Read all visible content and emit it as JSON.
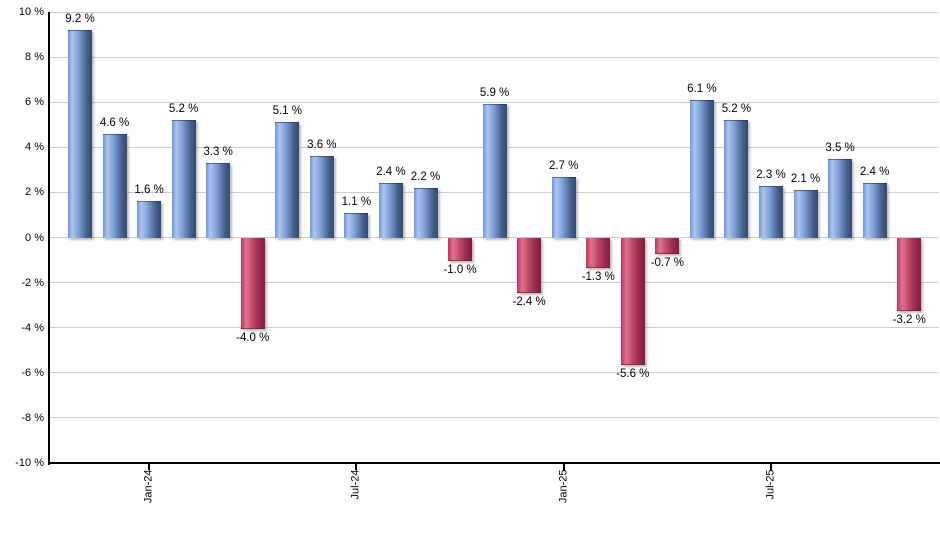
{
  "chart_data": {
    "type": "bar",
    "title": "",
    "xlabel": "",
    "ylabel": "",
    "ylim": [
      -10,
      10
    ],
    "grid": true,
    "legend_position": "none",
    "y_ticks": [
      {
        "value": 10,
        "label": "10 %"
      },
      {
        "value": 8,
        "label": "8 %"
      },
      {
        "value": 6,
        "label": "6 %"
      },
      {
        "value": 4,
        "label": "4 %"
      },
      {
        "value": 2,
        "label": "2 %"
      },
      {
        "value": 0,
        "label": "0 %"
      },
      {
        "value": -2,
        "label": "-2 %"
      },
      {
        "value": -4,
        "label": "-4 %"
      },
      {
        "value": -6,
        "label": "-6 %"
      },
      {
        "value": -8,
        "label": "-8 %"
      },
      {
        "value": -10,
        "label": "-10 %"
      }
    ],
    "bars": [
      {
        "value": 9.2,
        "label": "9.2 %"
      },
      {
        "value": 4.6,
        "label": "4.6 %"
      },
      {
        "value": 1.6,
        "label": "1.6 %"
      },
      {
        "value": 5.2,
        "label": "5.2 %"
      },
      {
        "value": 3.3,
        "label": "3.3 %"
      },
      {
        "value": -4.0,
        "label": "-4.0 %"
      },
      {
        "value": 5.1,
        "label": "5.1 %"
      },
      {
        "value": 3.6,
        "label": "3.6 %"
      },
      {
        "value": 1.1,
        "label": "1.1 %"
      },
      {
        "value": 2.4,
        "label": "2.4 %"
      },
      {
        "value": 2.2,
        "label": "2.2 %"
      },
      {
        "value": -1.0,
        "label": "-1.0 %"
      },
      {
        "value": 5.9,
        "label": "5.9 %"
      },
      {
        "value": -2.4,
        "label": "-2.4 %"
      },
      {
        "value": 2.7,
        "label": "2.7 %"
      },
      {
        "value": -1.3,
        "label": "-1.3 %"
      },
      {
        "value": -5.6,
        "label": "-5.6 %"
      },
      {
        "value": -0.7,
        "label": "-0.7 %"
      },
      {
        "value": 6.1,
        "label": "6.1 %"
      },
      {
        "value": 5.2,
        "label": "5.2 %"
      },
      {
        "value": 2.3,
        "label": "2.3 %"
      },
      {
        "value": 2.1,
        "label": "2.1 %"
      },
      {
        "value": 3.5,
        "label": "3.5 %"
      },
      {
        "value": 2.4,
        "label": "2.4 %"
      },
      {
        "value": -3.2,
        "label": "-3.2 %"
      }
    ],
    "x_ticks": [
      {
        "bar_index": 2,
        "label": "Jan-24"
      },
      {
        "bar_index": 8,
        "label": "Jul-24"
      },
      {
        "bar_index": 14,
        "label": "Jan-25"
      },
      {
        "bar_index": 20,
        "label": "Jul-25"
      }
    ],
    "colors": {
      "positive_gradient": [
        "#7296cf",
        "#aac5f2",
        "#7d9ed6",
        "#46608f",
        "#33496f"
      ],
      "negative_gradient": [
        "#c93058",
        "#de7490",
        "#c24766",
        "#9a2b4d",
        "#7f1d3c"
      ],
      "gridline": "#cccccc",
      "axis": "#000000",
      "background": "#ffffff",
      "label_text": "#000000"
    }
  }
}
